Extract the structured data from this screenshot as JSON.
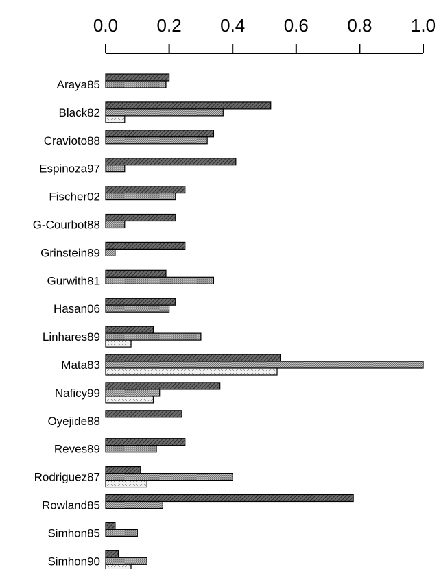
{
  "chart_data": {
    "type": "bar",
    "orientation": "horizontal",
    "title": "",
    "xlabel": "",
    "ylabel": "",
    "xlim": [
      0,
      1
    ],
    "x_ticks": [
      "0.0",
      "0.2",
      "0.4",
      "0.6",
      "0.8",
      "1.0"
    ],
    "x_tick_values": [
      0,
      0.2,
      0.4,
      0.6,
      0.8,
      1.0
    ],
    "x_axis_position": "top",
    "grid": false,
    "legend": "none",
    "categories": [
      "Araya85",
      "Black82",
      "Cravioto88",
      "Espinoza97",
      "Fischer02",
      "G-Courbot88",
      "Grinstein89",
      "Gurwith81",
      "Hasan06",
      "Linhares89",
      "Mata83",
      "Naficy99",
      "Oyejide88",
      "Reves89",
      "Rodriguez87",
      "Rowland85",
      "Simhon85",
      "Simhon90"
    ],
    "series": [
      {
        "pattern": "dense-diagonal-hatch",
        "fill_color": "#5a5a5a",
        "values": [
          0.2,
          0.52,
          0.34,
          0.41,
          0.25,
          0.22,
          0.25,
          0.19,
          0.22,
          0.15,
          0.55,
          0.36,
          0.24,
          0.25,
          0.11,
          0.78,
          0.03,
          0.04
        ]
      },
      {
        "pattern": "fine-crosshatch",
        "fill_color": "#a8a8a8",
        "values": [
          0.19,
          0.37,
          0.32,
          0.06,
          0.22,
          0.06,
          0.03,
          0.34,
          0.2,
          0.3,
          1.0,
          0.17,
          null,
          0.16,
          0.4,
          0.18,
          0.1,
          0.13
        ]
      },
      {
        "pattern": "light-stipple",
        "fill_color": "#e6e6e6",
        "values": [
          null,
          0.06,
          null,
          null,
          null,
          null,
          null,
          null,
          null,
          0.08,
          0.54,
          0.15,
          null,
          null,
          0.13,
          null,
          null,
          0.08
        ]
      }
    ]
  }
}
